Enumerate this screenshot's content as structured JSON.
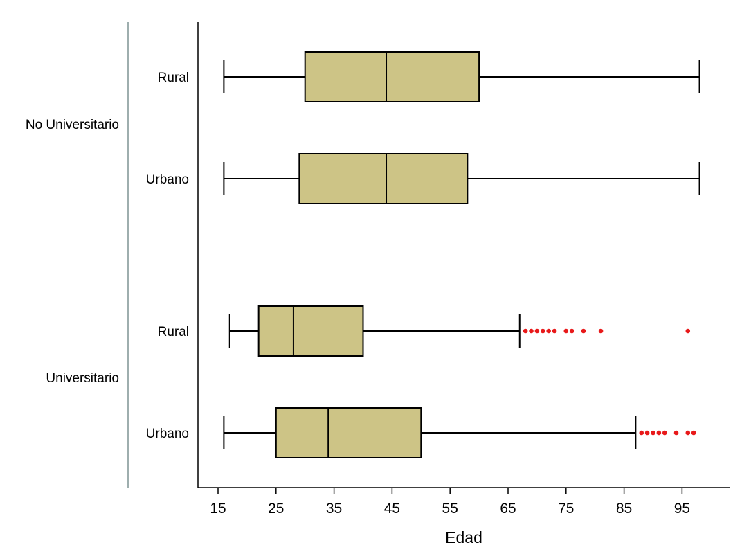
{
  "chart_data": {
    "type": "boxplot",
    "orientation": "horizontal",
    "xlabel": "Edad",
    "xlim": [
      13,
      100
    ],
    "xticks": [
      "15",
      "25",
      "35",
      "45",
      "55",
      "65",
      "75",
      "85",
      "95"
    ],
    "box_color": "#CDC486",
    "outlier_color": "#E8191A",
    "groups": [
      {
        "name": "No Universitario",
        "boxes": [
          {
            "name": "Rural",
            "whisker_low": 16,
            "q1": 30,
            "median": 44,
            "q3": 60,
            "whisker_high": 98,
            "outliers": []
          },
          {
            "name": "Urbano",
            "whisker_low": 16,
            "q1": 29,
            "median": 44,
            "q3": 58,
            "whisker_high": 98,
            "outliers": []
          }
        ]
      },
      {
        "name": "Universitario",
        "boxes": [
          {
            "name": "Rural",
            "whisker_low": 17,
            "q1": 22,
            "median": 28,
            "q3": 40,
            "whisker_high": 67,
            "outliers": [
              68,
              69,
              70,
              71,
              72,
              73,
              75,
              76,
              78,
              81,
              96
            ]
          },
          {
            "name": "Urbano",
            "whisker_low": 16,
            "q1": 25,
            "median": 34,
            "q3": 50,
            "whisker_high": 87,
            "outliers": [
              88,
              89,
              90,
              91,
              92,
              94,
              96,
              97
            ]
          }
        ]
      }
    ]
  }
}
